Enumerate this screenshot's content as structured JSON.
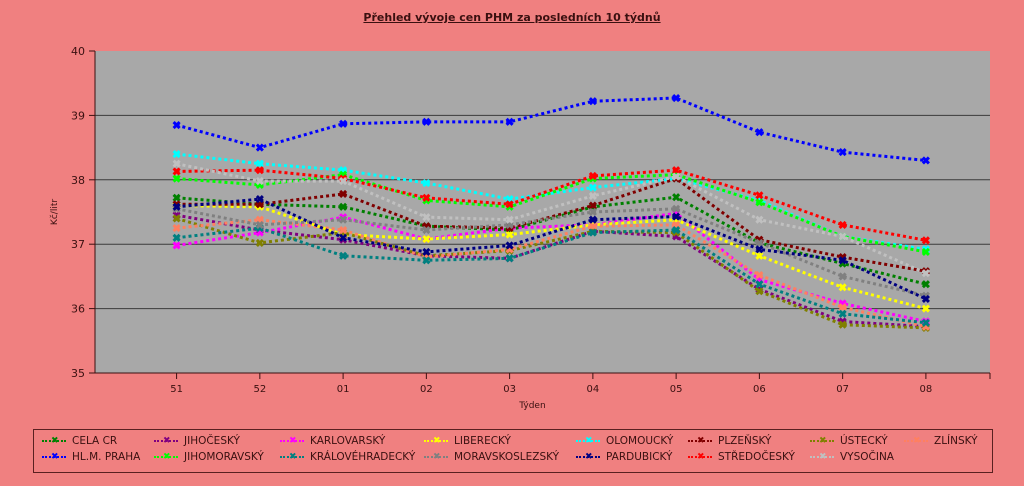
{
  "chart_data": {
    "type": "line",
    "title": "Přehled vývoje cen PHM za posledních 10 týdnů",
    "xlabel": "Týden",
    "ylabel": "Kč/litr",
    "ylim": [
      35,
      40
    ],
    "yticks": [
      "35",
      "36",
      "37",
      "38",
      "39",
      "40"
    ],
    "grid": true,
    "legend_position": "bottom",
    "categories": [
      "51",
      "52",
      "01",
      "02",
      "03",
      "04",
      "05",
      "06",
      "07",
      "08"
    ],
    "series": [
      {
        "name": "CELA CR",
        "color": "#008000",
        "values": [
          37.72,
          37.62,
          37.58,
          37.28,
          37.22,
          37.58,
          37.73,
          37.02,
          36.7,
          36.38
        ]
      },
      {
        "name": "JIHOČESKÝ",
        "color": "#800080",
        "values": [
          37.45,
          37.22,
          37.07,
          36.82,
          36.78,
          37.2,
          37.12,
          36.3,
          35.8,
          35.72
        ]
      },
      {
        "name": "KARLOVARSKÝ",
        "color": "#ff00ff",
        "values": [
          36.98,
          37.18,
          37.42,
          37.08,
          37.25,
          37.3,
          37.48,
          36.45,
          36.08,
          35.8
        ]
      },
      {
        "name": "LIBERECKÝ",
        "color": "#ffff00",
        "values": [
          37.6,
          37.58,
          37.15,
          37.08,
          37.15,
          37.3,
          37.38,
          36.82,
          36.33,
          36.0
        ]
      },
      {
        "name": "OLOMOUCKÝ",
        "color": "#00ffff",
        "values": [
          38.4,
          38.25,
          38.15,
          37.95,
          37.7,
          37.88,
          38.02,
          37.68,
          37.12,
          36.92
        ]
      },
      {
        "name": "PLZEŇSKÝ",
        "color": "#800000",
        "values": [
          37.62,
          37.62,
          37.78,
          37.28,
          37.25,
          37.6,
          38.02,
          37.07,
          36.8,
          36.58
        ]
      },
      {
        "name": "ÚSTECKÝ",
        "color": "#808000",
        "values": [
          37.4,
          37.02,
          37.18,
          36.82,
          36.9,
          37.2,
          37.18,
          36.27,
          35.75,
          35.7
        ]
      },
      {
        "name": "ZLÍNSKÝ",
        "color": "#ff8060",
        "values": [
          37.25,
          37.38,
          37.22,
          36.8,
          36.92,
          37.28,
          37.3,
          36.52,
          36.02,
          35.72
        ]
      },
      {
        "name": "HL.M. PRAHA",
        "color": "#0000ff",
        "values": [
          38.85,
          38.5,
          38.87,
          38.9,
          38.9,
          39.22,
          39.27,
          38.74,
          38.43,
          38.3
        ]
      },
      {
        "name": "JIHOMORAVSKÝ",
        "color": "#00ff00",
        "values": [
          38.02,
          37.92,
          38.08,
          37.68,
          37.58,
          38.02,
          38.08,
          37.65,
          37.12,
          36.88
        ]
      },
      {
        "name": "KRÁLOVÉHRADECKÝ",
        "color": "#008080",
        "values": [
          37.1,
          37.25,
          36.82,
          36.75,
          36.78,
          37.18,
          37.22,
          36.38,
          35.92,
          35.78
        ]
      },
      {
        "name": "MORAVSKOSLEZSKÝ",
        "color": "#808080",
        "values": [
          37.55,
          37.3,
          37.38,
          37.22,
          37.3,
          37.5,
          37.55,
          37.02,
          36.5,
          36.2
        ]
      },
      {
        "name": "PARDUBICKÝ",
        "color": "#000080",
        "values": [
          37.58,
          37.7,
          37.1,
          36.88,
          36.98,
          37.38,
          37.43,
          36.92,
          36.75,
          36.15
        ]
      },
      {
        "name": "STŘEDOČESKÝ",
        "color": "#ff0000",
        "values": [
          38.13,
          38.15,
          38.02,
          37.72,
          37.62,
          38.06,
          38.15,
          37.76,
          37.3,
          37.06
        ]
      },
      {
        "name": "VYSOČINA",
        "color": "#c0c0c0",
        "values": [
          38.25,
          37.98,
          37.98,
          37.42,
          37.38,
          37.75,
          38.05,
          37.38,
          37.12,
          36.55
        ]
      }
    ]
  }
}
